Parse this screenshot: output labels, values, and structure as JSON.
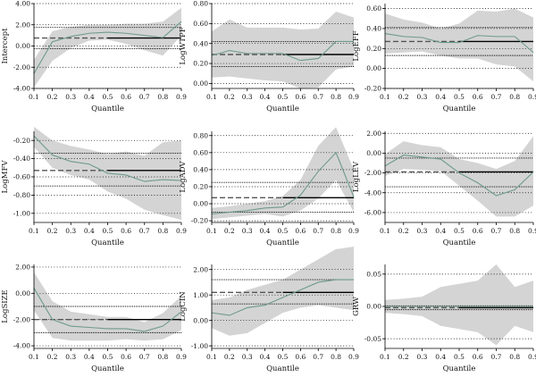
{
  "chart_data": [
    {
      "type": "line",
      "ylabel": "Intercept",
      "xlabel": "Quantile",
      "x": [
        0.1,
        0.2,
        0.3,
        0.4,
        0.5,
        0.6,
        0.7,
        0.8,
        0.9
      ],
      "xticks": [
        "0.1",
        "0.2",
        "0.3",
        "0.4",
        "0.5",
        "0.6",
        "0.7",
        "0.8",
        "0.9"
      ],
      "ylim": [
        -4,
        4
      ],
      "yticks": [
        -4,
        -2,
        0,
        2,
        4
      ],
      "yticklabels": [
        "-4.00",
        "-2.00",
        "0.00",
        "2.00",
        "4.00"
      ],
      "estimate": [
        -2.6,
        0.4,
        0.9,
        1.2,
        1.3,
        1.2,
        1.0,
        0.8,
        2.3
      ],
      "ci_lower": [
        -3.9,
        -1.4,
        -0.2,
        0.5,
        0.6,
        0.2,
        -0.4,
        -0.9,
        1.0
      ],
      "ci_upper": [
        -1.3,
        1.4,
        1.8,
        2.0,
        2.0,
        2.1,
        2.1,
        2.3,
        3.6
      ],
      "ols_estimate": 0.75,
      "ols_ci": [
        -0.25,
        1.75
      ]
    },
    {
      "type": "line",
      "ylabel": "LogWTPF",
      "xlabel": "Quantile",
      "x": [
        0.1,
        0.2,
        0.3,
        0.4,
        0.5,
        0.6,
        0.7,
        0.8,
        0.9
      ],
      "xticks": [
        "0.1",
        "0.2",
        "0.3",
        "0.4",
        "0.5",
        "0.6",
        "0.7",
        "0.8",
        "0.9"
      ],
      "ylim": [
        -0.05,
        0.8
      ],
      "yticks": [
        0,
        0.2,
        0.4,
        0.6,
        0.8
      ],
      "yticklabels": [
        "0.00",
        "0.20",
        "0.40",
        "0.60",
        "0.80"
      ],
      "estimate": [
        0.28,
        0.33,
        0.3,
        0.3,
        0.3,
        0.23,
        0.25,
        0.42,
        0.42
      ],
      "ci_lower": [
        0.06,
        0.07,
        0.05,
        0.03,
        0.02,
        -0.05,
        -0.04,
        0.14,
        0.17
      ],
      "ci_upper": [
        0.52,
        0.64,
        0.56,
        0.56,
        0.56,
        0.54,
        0.55,
        0.72,
        0.66
      ],
      "ols_estimate": 0.29,
      "ols_ci": [
        0.17,
        0.42
      ]
    },
    {
      "type": "line",
      "ylabel": "LogEFF",
      "xlabel": "Quantile",
      "x": [
        0.1,
        0.2,
        0.3,
        0.4,
        0.5,
        0.6,
        0.7,
        0.8,
        0.9
      ],
      "xticks": [
        "0.1",
        "0.2",
        "0.3",
        "0.4",
        "0.5",
        "0.6",
        "0.7",
        "0.8",
        "0.9"
      ],
      "ylim": [
        -0.2,
        0.65
      ],
      "yticks": [
        -0.2,
        0,
        0.2,
        0.4,
        0.6
      ],
      "yticklabels": [
        "-0.20",
        "0.00",
        "0.20",
        "0.40",
        "0.60"
      ],
      "estimate": [
        0.35,
        0.32,
        0.31,
        0.26,
        0.26,
        0.33,
        0.32,
        0.32,
        0.16
      ],
      "ci_lower": [
        0.15,
        0.16,
        0.17,
        0.13,
        0.1,
        0.1,
        0.04,
        0.02,
        -0.13
      ],
      "ci_upper": [
        0.55,
        0.49,
        0.46,
        0.4,
        0.45,
        0.58,
        0.57,
        0.6,
        0.51
      ],
      "ols_estimate": 0.27,
      "ols_ci": [
        0.13,
        0.41
      ]
    },
    {
      "type": "line",
      "ylabel": "LogMFV",
      "xlabel": "Quantile",
      "x": [
        0.1,
        0.2,
        0.3,
        0.4,
        0.5,
        0.6,
        0.7,
        0.8,
        0.9
      ],
      "xticks": [
        "0.1",
        "0.2",
        "0.3",
        "0.4",
        "0.5",
        "0.6",
        "0.7",
        "0.8",
        "0.9"
      ],
      "ylim": [
        -1.1,
        -0.1
      ],
      "yticks": [
        -1,
        -0.8,
        -0.6,
        -0.4,
        -0.2
      ],
      "yticklabels": [
        "-1.00",
        "-0.80",
        "-0.60",
        "-0.40",
        "-0.20"
      ],
      "estimate": [
        -0.15,
        -0.36,
        -0.43,
        -0.46,
        -0.56,
        -0.58,
        -0.65,
        -0.63,
        -0.64
      ],
      "ci_lower": [
        -0.27,
        -0.5,
        -0.58,
        -0.63,
        -0.76,
        -0.84,
        -0.96,
        -1.02,
        -1.07
      ],
      "ci_upper": [
        -0.05,
        -0.2,
        -0.26,
        -0.3,
        -0.35,
        -0.32,
        -0.37,
        -0.22,
        -0.2
      ],
      "ols_estimate": -0.53,
      "ols_ci": [
        -0.7,
        -0.34
      ]
    },
    {
      "type": "line",
      "ylabel": "LogADV",
      "xlabel": "Quantile",
      "x": [
        0.1,
        0.2,
        0.3,
        0.4,
        0.5,
        0.6,
        0.7,
        0.8,
        0.9
      ],
      "xticks": [
        "0.1",
        "0.2",
        "0.3",
        "0.4",
        "0.5",
        "0.6",
        "0.7",
        "0.8",
        "0.9"
      ],
      "ylim": [
        -0.22,
        0.85
      ],
      "yticks": [
        -0.2,
        0,
        0.2,
        0.4,
        0.6,
        0.8
      ],
      "yticklabels": [
        "-0.20",
        "0.00",
        "0.20",
        "0.40",
        "0.60",
        "0.80"
      ],
      "estimate": [
        -0.12,
        -0.1,
        -0.08,
        -0.05,
        -0.04,
        0.1,
        0.38,
        0.6,
        0.08
      ],
      "ci_lower": [
        -0.18,
        -0.16,
        -0.14,
        -0.12,
        -0.15,
        -0.08,
        0.06,
        0.28,
        -0.1
      ],
      "ci_upper": [
        -0.05,
        -0.03,
        0.0,
        0.03,
        0.09,
        0.28,
        0.68,
        0.9,
        0.4
      ],
      "ols_estimate": 0.07,
      "ols_ci": [
        -0.1,
        0.25
      ]
    },
    {
      "type": "line",
      "ylabel": "LogLEV",
      "xlabel": "Quantile",
      "x": [
        0.1,
        0.2,
        0.3,
        0.4,
        0.5,
        0.6,
        0.7,
        0.8,
        0.9
      ],
      "xticks": [
        "0.1",
        "0.2",
        "0.3",
        "0.4",
        "0.5",
        "0.6",
        "0.7",
        "0.8",
        "0.9"
      ],
      "ylim": [
        -7,
        2.2
      ],
      "yticks": [
        -6,
        -4,
        -2,
        0,
        2
      ],
      "yticklabels": [
        "-6.00",
        "-4.00",
        "-2.00",
        "0.00",
        "2.00"
      ],
      "estimate": [
        -1.3,
        -0.2,
        -0.4,
        -0.6,
        -2.0,
        -3.0,
        -4.3,
        -3.7,
        -1.9
      ],
      "ci_lower": [
        -2.3,
        -1.6,
        -1.7,
        -1.8,
        -3.3,
        -4.8,
        -6.4,
        -6.4,
        -5.3
      ],
      "ci_upper": [
        -0.1,
        1.2,
        0.8,
        0.6,
        -0.6,
        -1.0,
        -1.6,
        -0.8,
        1.7
      ],
      "ols_estimate": -1.9,
      "ols_ci": [
        -3.4,
        -0.5
      ]
    },
    {
      "type": "line",
      "ylabel": "LogSIZE",
      "xlabel": "Quantile",
      "x": [
        0.1,
        0.2,
        0.3,
        0.4,
        0.5,
        0.6,
        0.7,
        0.8,
        0.9
      ],
      "xticks": [
        "0.1",
        "0.2",
        "0.3",
        "0.4",
        "0.5",
        "0.6",
        "0.7",
        "0.8",
        "0.9"
      ],
      "ylim": [
        -4.2,
        2.2
      ],
      "yticks": [
        -4,
        -2,
        0,
        2
      ],
      "yticklabels": [
        "-4.00",
        "-2.00",
        "0.00",
        "2.00"
      ],
      "estimate": [
        0.4,
        -2.0,
        -2.5,
        -2.6,
        -2.7,
        -2.7,
        -2.9,
        -2.5,
        -1.4
      ],
      "ci_lower": [
        -1.3,
        -3.4,
        -3.6,
        -3.6,
        -3.6,
        -3.5,
        -3.6,
        -3.5,
        -2.8
      ],
      "ci_upper": [
        1.6,
        -0.6,
        -1.4,
        -1.6,
        -1.8,
        -1.8,
        -2.2,
        -1.5,
        -0.2
      ],
      "ols_estimate": -2.0,
      "ols_ci": [
        -3.0,
        -1.0
      ]
    },
    {
      "type": "line",
      "ylabel": "LogCIN",
      "xlabel": "Quantile",
      "x": [
        0.1,
        0.2,
        0.3,
        0.4,
        0.5,
        0.6,
        0.7,
        0.8,
        0.9
      ],
      "xticks": [
        "0.1",
        "0.2",
        "0.3",
        "0.4",
        "0.5",
        "0.6",
        "0.7",
        "0.8",
        "0.9"
      ],
      "ylim": [
        -1.1,
        2.2
      ],
      "yticks": [
        -1,
        0,
        1,
        2
      ],
      "yticklabels": [
        "-1.00",
        "0.00",
        "1.00",
        "2.00"
      ],
      "estimate": [
        0.3,
        0.2,
        0.5,
        0.6,
        0.9,
        1.2,
        1.5,
        1.6,
        1.6
      ],
      "ci_lower": [
        -0.3,
        -0.6,
        -0.5,
        -0.1,
        0.3,
        0.5,
        0.6,
        0.5,
        0.4
      ],
      "ci_upper": [
        0.8,
        0.9,
        1.2,
        1.4,
        1.6,
        2.0,
        2.4,
        2.8,
        2.9
      ],
      "ols_estimate": 1.1,
      "ols_ci": [
        0.65,
        1.6
      ]
    },
    {
      "type": "line",
      "ylabel": "GRW",
      "xlabel": "Quantile",
      "x": [
        0.1,
        0.2,
        0.3,
        0.4,
        0.5,
        0.6,
        0.7,
        0.8,
        0.9
      ],
      "xticks": [
        "0.1",
        "0.2",
        "0.3",
        "0.4",
        "0.5",
        "0.6",
        "0.7",
        "0.8",
        "0.9"
      ],
      "ylim": [
        -0.065,
        0.065
      ],
      "yticks": [
        -0.05,
        0,
        0.05
      ],
      "yticklabels": [
        "-0.05",
        "0.00",
        "0.05"
      ],
      "estimate": [
        0.0,
        0.0,
        0.0,
        0.0,
        0.0,
        0.0,
        0.0,
        0.0,
        0.0
      ],
      "ci_lower": [
        -0.01,
        -0.012,
        -0.015,
        -0.03,
        -0.035,
        -0.04,
        -0.06,
        -0.03,
        -0.04
      ],
      "ci_upper": [
        0.01,
        0.012,
        0.015,
        0.03,
        0.035,
        0.04,
        0.065,
        0.03,
        0.04
      ],
      "ols_estimate": -0.002,
      "ols_ci": [
        -0.005,
        0.001
      ]
    }
  ],
  "colors": {
    "band": "#d4d4d4",
    "estimate": "#6e9a8c",
    "ols": "#000000",
    "dashed": "#555555",
    "axis": "#000000"
  }
}
